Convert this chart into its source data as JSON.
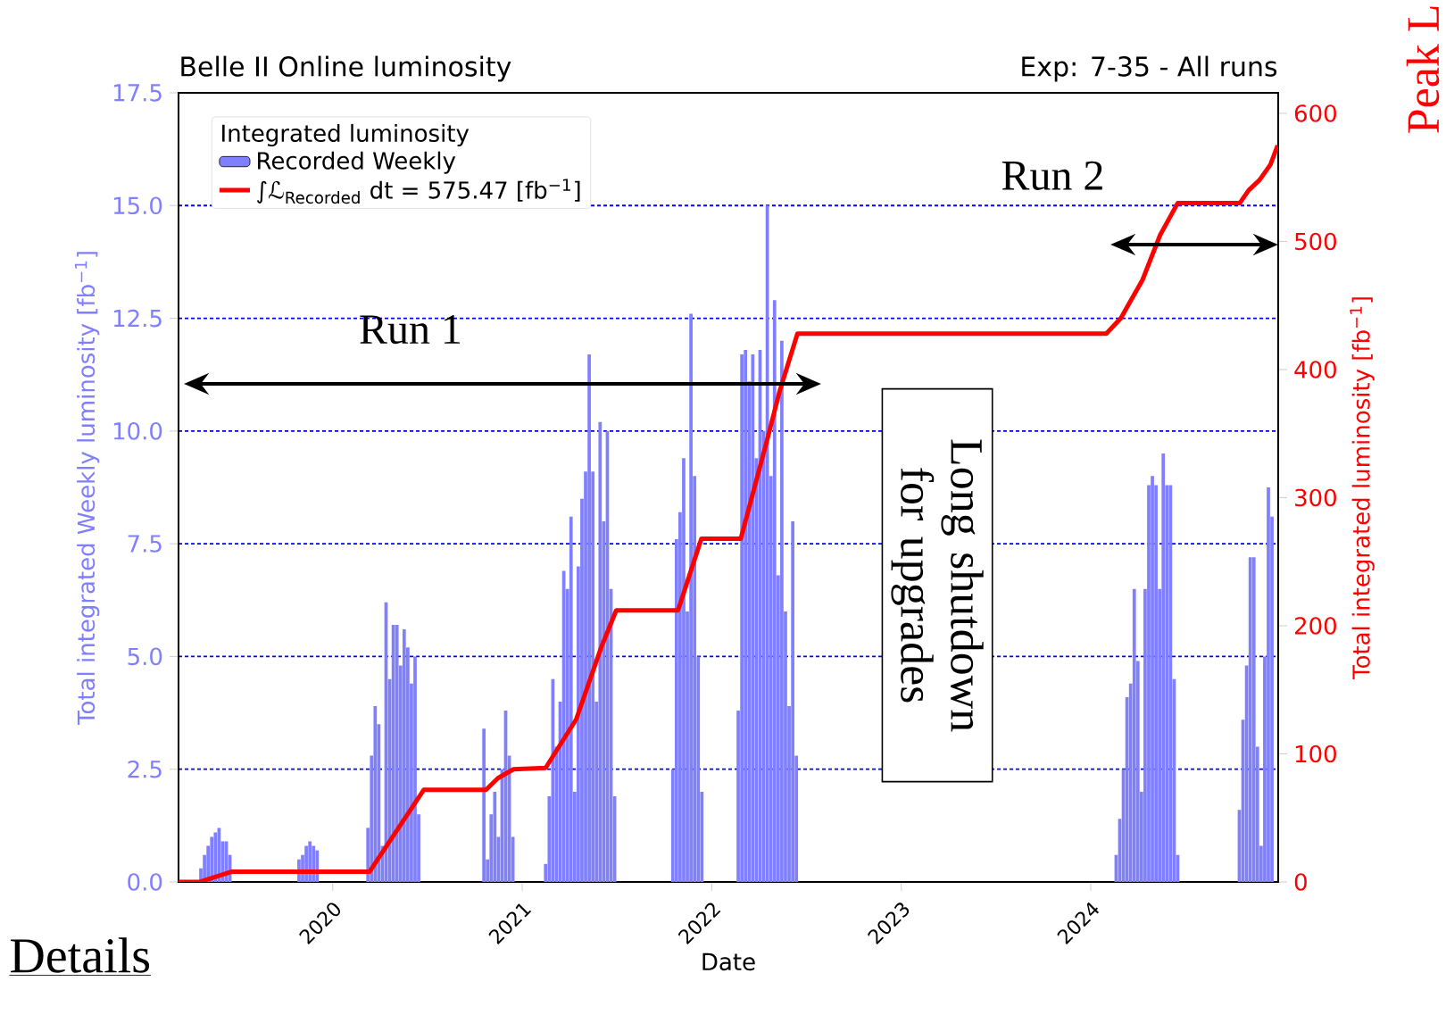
{
  "chart_data": {
    "type": "bar",
    "title": "Belle II Online luminosity",
    "subtitle": "Exp: 7-35 - All runs",
    "xlabel": "Date",
    "ylabel": "Total integrated Weekly luminosity [fb$^{−1}$]",
    "y2label": "Total integrated luminosity [fb$^{−1}$]",
    "legend_title": "Integrated luminosity",
    "legend": "top left",
    "grid": "y",
    "xlim": [
      "2019-03-10",
      "2024-12-28"
    ],
    "xticks": [
      "2020",
      "2021",
      "2022",
      "2023",
      "2024"
    ],
    "ylim": [
      0,
      17.5
    ],
    "yticks": [
      {
        "value": 0,
        "label": "0.0"
      },
      {
        "value": 2.5,
        "label": "2.5"
      },
      {
        "value": 5,
        "label": "5.0"
      },
      {
        "value": 7.5,
        "label": "7.5"
      },
      {
        "value": 10,
        "label": "10.0"
      },
      {
        "value": 12.5,
        "label": "12.5"
      },
      {
        "value": 15,
        "label": "15.0"
      },
      {
        "value": 17.5,
        "label": "17.5"
      }
    ],
    "y2lim": [
      0,
      616
    ],
    "y2ticks": [
      0,
      100,
      200,
      300,
      400,
      500,
      600
    ],
    "series": [
      {
        "name": "Recorded Weekly",
        "color": "#7f7fff",
        "x": [
          "2019-04-22",
          "2019-04-29",
          "2019-05-06",
          "2019-05-13",
          "2019-05-20",
          "2019-05-27",
          "2019-06-03",
          "2019-06-10",
          "2019-06-17",
          "2019-10-28",
          "2019-11-04",
          "2019-11-11",
          "2019-11-18",
          "2019-11-25",
          "2019-12-02",
          "2020-03-09",
          "2020-03-16",
          "2020-03-23",
          "2020-03-30",
          "2020-04-06",
          "2020-04-13",
          "2020-04-20",
          "2020-04-27",
          "2020-05-04",
          "2020-05-11",
          "2020-05-18",
          "2020-05-25",
          "2020-06-01",
          "2020-06-08",
          "2020-06-15",
          "2020-10-19",
          "2020-10-26",
          "2020-11-02",
          "2020-11-09",
          "2020-11-16",
          "2020-11-23",
          "2020-11-30",
          "2020-12-07",
          "2020-12-14",
          "2021-02-15",
          "2021-02-22",
          "2021-03-01",
          "2021-03-08",
          "2021-03-15",
          "2021-03-22",
          "2021-03-29",
          "2021-04-05",
          "2021-04-12",
          "2021-04-19",
          "2021-04-26",
          "2021-05-03",
          "2021-05-10",
          "2021-05-17",
          "2021-05-24",
          "2021-05-31",
          "2021-06-07",
          "2021-06-14",
          "2021-06-21",
          "2021-06-28",
          "2021-10-18",
          "2021-10-25",
          "2021-11-01",
          "2021-11-08",
          "2021-11-15",
          "2021-11-22",
          "2021-11-29",
          "2021-12-06",
          "2021-12-13",
          "2022-02-21",
          "2022-02-28",
          "2022-03-07",
          "2022-03-14",
          "2022-03-21",
          "2022-03-28",
          "2022-04-04",
          "2022-04-11",
          "2022-04-18",
          "2022-04-25",
          "2022-05-02",
          "2022-05-09",
          "2022-05-16",
          "2022-05-23",
          "2022-05-30",
          "2022-06-06",
          "2022-06-13",
          "2024-02-19",
          "2024-02-26",
          "2024-03-04",
          "2024-03-11",
          "2024-03-18",
          "2024-03-25",
          "2024-04-01",
          "2024-04-08",
          "2024-04-15",
          "2024-04-22",
          "2024-04-29",
          "2024-05-06",
          "2024-05-13",
          "2024-05-20",
          "2024-05-27",
          "2024-06-03",
          "2024-06-10",
          "2024-06-17",
          "2024-10-14",
          "2024-10-21",
          "2024-10-28",
          "2024-11-04",
          "2024-11-11",
          "2024-11-18",
          "2024-11-25",
          "2024-12-02",
          "2024-12-09",
          "2024-12-16"
        ],
        "values": [
          0.3,
          0.6,
          0.8,
          1.0,
          1.1,
          1.2,
          0.9,
          0.9,
          0.6,
          0.5,
          0.6,
          0.8,
          0.9,
          0.8,
          0.7,
          1.2,
          2.8,
          3.9,
          3.5,
          0.8,
          6.2,
          4.5,
          5.7,
          5.7,
          4.8,
          5.6,
          5.2,
          4.4,
          5.0,
          1.5,
          3.4,
          0.5,
          1.5,
          2.0,
          1.0,
          2.5,
          3.8,
          2.8,
          1.0,
          0.4,
          1.9,
          4.5,
          3.0,
          4.0,
          6.9,
          6.5,
          8.1,
          2.0,
          7.0,
          8.5,
          9.1,
          11.7,
          9.1,
          4.0,
          10.2,
          8.0,
          10.0,
          6.5,
          1.9,
          2.5,
          7.6,
          8.2,
          9.4,
          6.0,
          12.6,
          9.0,
          5.0,
          2.0,
          3.8,
          11.7,
          11.8,
          11.1,
          11.7,
          9.4,
          11.8,
          10.0,
          15.0,
          9.0,
          12.9,
          6.8,
          12.0,
          6.0,
          3.9,
          8.0,
          2.8,
          0.6,
          1.4,
          2.5,
          4.1,
          4.4,
          6.5,
          4.9,
          2.0,
          6.5,
          8.8,
          9.0,
          8.8,
          6.5,
          9.5,
          8.8,
          8.8,
          4.5,
          0.6,
          1.6,
          3.6,
          4.8,
          7.2,
          7.2,
          3.0,
          0.8,
          5.0,
          8.75,
          8.1
        ]
      },
      {
        "name": "∫ℒ$_{Recorded}$ dt = 575.47 [fb$^{−1}$]",
        "type": "line",
        "axis": "y2",
        "color": "#ff0000",
        "x": [
          "2019-03-10",
          "2019-04-20",
          "2019-06-20",
          "2020-03-12",
          "2020-06-25",
          "2020-10-23",
          "2020-11-15",
          "2020-12-15",
          "2021-02-15",
          "2021-04-15",
          "2021-06-02",
          "2021-07-01",
          "2021-10-28",
          "2021-12-12",
          "2022-02-26",
          "2022-04-17",
          "2022-05-11",
          "2022-06-15",
          "2024-01-31",
          "2024-02-28",
          "2024-04-10",
          "2024-05-14",
          "2024-06-17",
          "2024-10-15",
          "2024-11-01",
          "2024-11-22",
          "2024-12-13",
          "2024-12-27"
        ],
        "values": [
          0,
          0,
          8,
          8,
          72,
          72,
          81,
          88,
          89,
          127,
          183,
          212,
          212,
          268,
          268,
          344,
          382,
          428,
          428,
          440,
          470,
          505,
          530,
          530,
          540,
          548,
          560,
          575
        ]
      }
    ],
    "annotations": [
      "Long shutdown for upgrades",
      "Details",
      "Peak L",
      "Run 1",
      "Run 2"
    ]
  }
}
